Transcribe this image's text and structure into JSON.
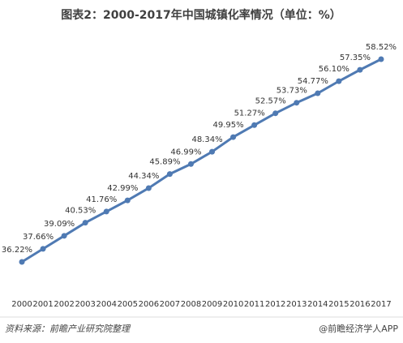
{
  "chart_data": {
    "type": "line",
    "title": "图表2：2000-2017年中国城镇化率情况（单位：%）",
    "categories": [
      "2000",
      "2001",
      "2002",
      "2003",
      "2004",
      "2005",
      "2006",
      "2007",
      "2008",
      "2009",
      "2010",
      "2011",
      "2012",
      "2013",
      "2014",
      "2015",
      "2016",
      "2017"
    ],
    "series": [
      {
        "color": "#4f7ab3",
        "values": [
          36.22,
          37.66,
          39.09,
          40.53,
          41.76,
          42.99,
          44.34,
          45.89,
          46.99,
          48.34,
          49.95,
          51.27,
          52.57,
          53.73,
          54.77,
          56.1,
          57.35,
          58.52
        ],
        "value_labels": [
          "36.22%",
          "37.66%",
          "39.09%",
          "40.53%",
          "41.76%",
          "42.99%",
          "44.34%",
          "45.89%",
          "46.99%",
          "48.34%",
          "49.95%",
          "51.27%",
          "52.57%",
          "53.73%",
          "54.77%",
          "56.10%",
          "57.35%",
          "58.52%"
        ]
      }
    ],
    "source": "资料来源：前瞻产业研究院整理",
    "credit": "@前瞻经济学人APP"
  }
}
